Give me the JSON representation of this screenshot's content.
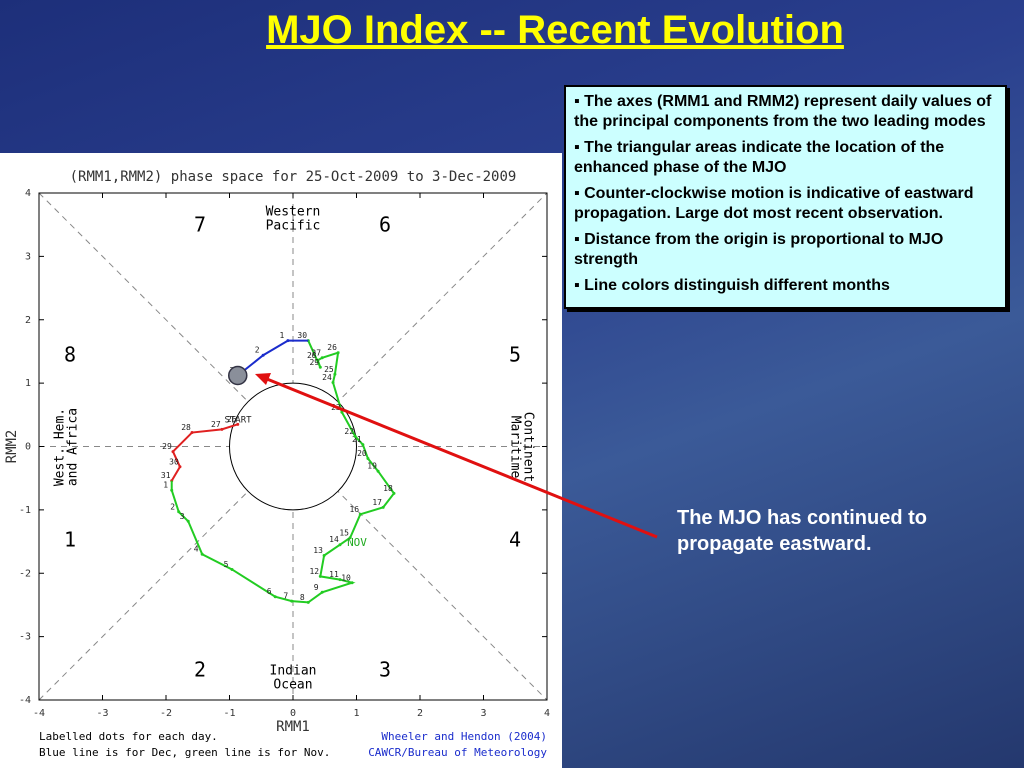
{
  "title": "MJO Index -- Recent Evolution",
  "bullets": [
    "The axes (RMM1 and RMM2) represent daily values of the principal components from the two leading modes",
    "The triangular areas indicate the location of the enhanced phase of the MJO",
    "Counter-clockwise motion is indicative of eastward propagation. Large dot most recent observation.",
    "Distance from the origin is proportional to MJO strength",
    "Line colors distinguish different months"
  ],
  "note": "The MJO has continued to propagate eastward.",
  "chart_data": {
    "type": "line",
    "title": "(RMM1,RMM2) phase space for 25-Oct-2009 to  3-Dec-2009",
    "xlabel": "RMM1",
    "ylabel": "RMM2",
    "xlim": [
      -4,
      4
    ],
    "ylim": [
      -4,
      4
    ],
    "xticks": [
      -4,
      -3,
      -2,
      -1,
      0,
      1,
      2,
      3,
      4
    ],
    "yticks": [
      -4,
      -3,
      -2,
      -1,
      0,
      1,
      2,
      3,
      4
    ],
    "series": [
      {
        "color": "#e02020",
        "labels": [
          "26",
          "27",
          "28",
          "29",
          "30",
          "31"
        ],
        "x": [
          -0.87,
          -1.12,
          -1.59,
          -1.89,
          -1.78,
          -1.91
        ],
        "values": [
          0.35,
          0.27,
          0.22,
          -0.08,
          -0.32,
          -0.54
        ]
      },
      {
        "color": "#22cc22",
        "labels": [
          "1",
          "2",
          "3",
          "4",
          "5",
          "6",
          "7",
          "8",
          "9",
          "10",
          "11",
          "12",
          "13",
          "14",
          "15",
          "16",
          "17",
          "18",
          "19",
          "20",
          "21",
          "22",
          "23",
          "24",
          "25",
          "26",
          "27",
          "28",
          "29",
          "30"
        ],
        "x": [
          -1.91,
          -1.8,
          -1.65,
          -1.43,
          -0.96,
          -0.28,
          -0.02,
          0.24,
          0.46,
          0.93,
          0.74,
          0.43,
          0.49,
          0.74,
          0.9,
          1.06,
          1.42,
          1.59,
          1.34,
          1.18,
          1.1,
          0.98,
          0.77,
          0.63,
          0.66,
          0.71,
          0.46,
          0.39,
          0.43,
          0.24
        ],
        "values": [
          -0.69,
          -1.03,
          -1.18,
          -1.7,
          -1.94,
          -2.37,
          -2.44,
          -2.46,
          -2.3,
          -2.15,
          -2.1,
          -2.05,
          -1.72,
          -1.55,
          -1.44,
          -1.07,
          -0.96,
          -0.74,
          -0.39,
          -0.19,
          0.03,
          0.16,
          0.54,
          1.01,
          1.14,
          1.48,
          1.4,
          1.36,
          1.25,
          1.67
        ]
      },
      {
        "color": "#1a2ccc",
        "labels": [
          "1",
          "2",
          "3"
        ],
        "x": [
          -0.08,
          -0.47,
          -0.87
        ],
        "values": [
          1.67,
          1.44,
          1.12
        ]
      }
    ],
    "annotations": [
      "START",
      "NOV"
    ],
    "phases": [
      "1",
      "2",
      "3",
      "4",
      "5",
      "6",
      "7",
      "8"
    ],
    "regions": [
      "Western",
      "Pacific",
      "Indian",
      "Ocean",
      "West. Hem.",
      "and Africa",
      "Maritime",
      "Continent"
    ],
    "footnotes": [
      "Labelled dots for each day.",
      "Blue line is for Dec, green line is for Nov.",
      "Wheeler and Hendon (2004)",
      "CAWCR/Bureau of Meteorology"
    ]
  }
}
